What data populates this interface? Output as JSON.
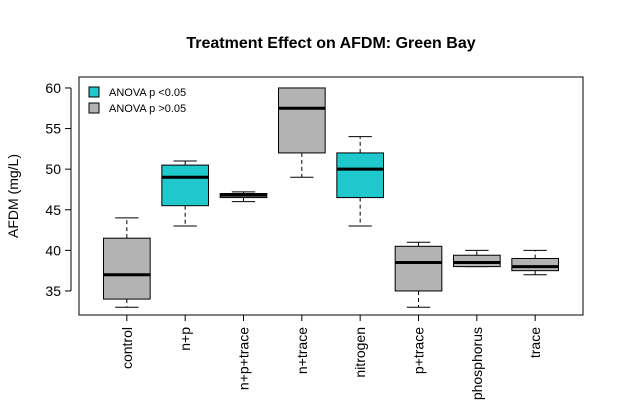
{
  "chart_data": {
    "type": "boxplot",
    "title": "Treatment Effect on AFDM: Green Bay",
    "y_label": "AFDM (mg/L)",
    "categories": [
      "control",
      "n+p",
      "n+p+trace",
      "n+trace",
      "nitrogen",
      "p+trace",
      "phosphorus",
      "trace"
    ],
    "min": [
      33,
      43,
      46,
      49,
      43,
      33,
      38,
      37
    ],
    "q1": [
      34,
      45.5,
      46.5,
      52,
      46.5,
      35,
      38,
      37.5
    ],
    "median": [
      37,
      49,
      46.8,
      57.5,
      50,
      38.5,
      38.5,
      38
    ],
    "q3": [
      41.5,
      50.5,
      47,
      60,
      52,
      40.5,
      39.4,
      39
    ],
    "max": [
      44,
      51,
      47.2,
      60,
      54,
      41,
      40,
      40
    ],
    "colors": [
      "#b3b3b3",
      "#1ec8cc",
      "#b3b3b3",
      "#b3b3b3",
      "#1ec8cc",
      "#b3b3b3",
      "#b3b3b3",
      "#b3b3b3"
    ],
    "ylim": [
      32.04,
      61.35
    ],
    "yticks": [
      35,
      40,
      45,
      50,
      55,
      60
    ],
    "legend": {
      "position": "top-left",
      "entries": [
        {
          "label": "ANOVA p <0.05",
          "color": "#1ec8cc"
        },
        {
          "label": "ANOVA p >0.05",
          "color": "#b3b3b3"
        }
      ]
    }
  }
}
